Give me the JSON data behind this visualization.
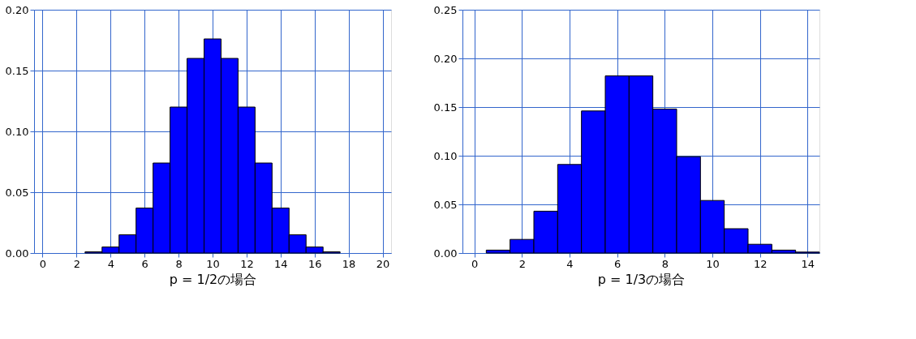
{
  "chart_data": [
    {
      "type": "histogram",
      "xlabel": "p = 1/2の場合",
      "bins": [
        -0.5,
        0.5,
        1.5,
        2.5,
        3.5,
        4.5,
        5.5,
        6.5,
        7.5,
        8.5,
        9.5,
        10.5,
        11.5,
        12.5,
        13.5,
        14.5,
        15.5,
        16.5,
        17.5,
        18.5,
        19.5,
        20.5
      ],
      "values": [
        null,
        null,
        null,
        0.001,
        0.005,
        0.015,
        0.037,
        0.074,
        0.12,
        0.16,
        0.176,
        0.16,
        0.12,
        0.074,
        0.037,
        0.015,
        0.005,
        0.001,
        null,
        null,
        null
      ],
      "color": "#0000ff",
      "xlim": [
        -0.5,
        20.5
      ],
      "xticks": [
        0,
        2,
        4,
        6,
        8,
        10,
        12,
        14,
        16,
        18,
        20
      ],
      "ylim": [
        0,
        0.2
      ],
      "yticks": [
        {
          "value": 0,
          "label": "0.00"
        },
        {
          "value": 0.05,
          "label": "0.05"
        },
        {
          "value": 0.1,
          "label": "0.10"
        },
        {
          "value": 0.15,
          "label": "0.15"
        },
        {
          "value": 0.2,
          "label": "0.20"
        }
      ],
      "grid": true
    },
    {
      "type": "histogram",
      "xlabel": "p = 1/3の場合",
      "bins": [
        -0.5,
        0.5,
        1.5,
        2.5,
        3.5,
        4.5,
        5.5,
        6.5,
        7.5,
        8.5,
        9.5,
        10.5,
        11.5,
        12.5,
        13.5,
        14.5
      ],
      "values": [
        null,
        0.003,
        0.014,
        0.043,
        0.091,
        0.146,
        0.182,
        0.182,
        0.148,
        0.099,
        0.054,
        0.025,
        0.009,
        0.003,
        0.001
      ],
      "color": "#0000ff",
      "xlim": [
        -0.5,
        14.5
      ],
      "xticks": [
        0,
        2,
        4,
        6,
        8,
        10,
        12,
        14
      ],
      "ylim": [
        0,
        0.25
      ],
      "yticks": [
        {
          "value": 0,
          "label": "0.00"
        },
        {
          "value": 0.05,
          "label": "0.05"
        },
        {
          "value": 0.1,
          "label": "0.10"
        },
        {
          "value": 0.15,
          "label": "0.15"
        },
        {
          "value": 0.2,
          "label": "0.20"
        },
        {
          "value": 0.25,
          "label": "0.25"
        }
      ],
      "grid": true
    }
  ]
}
